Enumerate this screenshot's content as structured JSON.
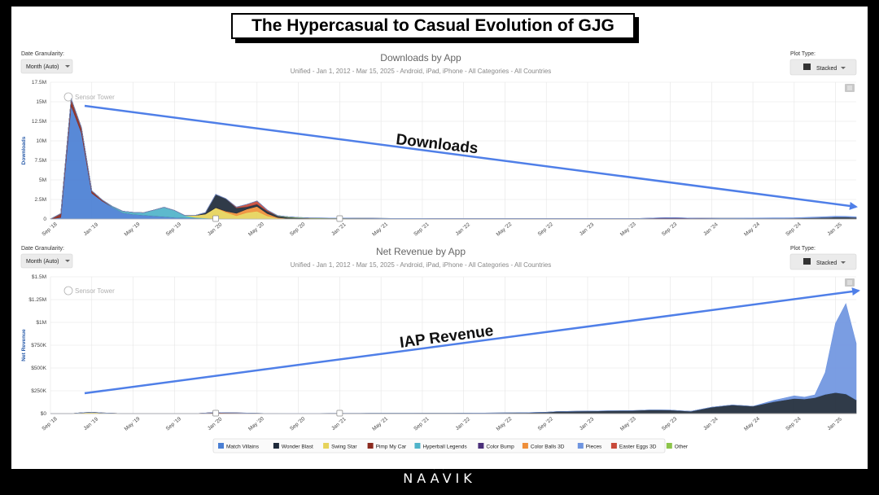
{
  "slide_title": "The Hypercasual to Casual Evolution of GJG",
  "footer_brand": "NAAVIK",
  "watermark": "Sensor Tower",
  "controls": {
    "granularity_label": "Date Granularity:",
    "granularity_value": "Month (Auto)",
    "plot_type_label": "Plot Type:",
    "plot_type_value": "Stacked"
  },
  "x_tick_labels": [
    "Sep '18",
    "Jan '19",
    "May '19",
    "Sep '19",
    "Jan '20",
    "May '20",
    "Sep '20",
    "Jan '21",
    "May '21",
    "Sep '21",
    "Jan '22",
    "May '22",
    "Sep '22",
    "Jan '23",
    "May '23",
    "Sep '23",
    "Jan '24",
    "May '24",
    "Sep '24",
    "Jan '25"
  ],
  "colors": {
    "Match Villains": "#4a7fd4",
    "Wonder Blast": "#1e2a3a",
    "Swing Star": "#e6d35a",
    "Pimp My Car": "#8b2a1e",
    "Hyperball Legends": "#4fb3c9",
    "Color Bump": "#4a2f7a",
    "Color Balls 3D": "#ef8f3a",
    "Pieces": "#6f95e0",
    "Easter Eggs 3D": "#c94a3a",
    "Other": "#8cc44a",
    "arrow": "#4f7fe8"
  },
  "legend": [
    "Match Villains",
    "Wonder Blast",
    "Swing Star",
    "Pimp My Car",
    "Hyperball Legends",
    "Color Bump",
    "Color Balls 3D",
    "Pieces",
    "Easter Eggs 3D",
    "Other"
  ],
  "chart_data": [
    {
      "type": "area",
      "title": "Downloads by App",
      "subtitle": "Unified - Jan 1, 2012 - Mar 15, 2025 - Android, iPad, iPhone - All Categories - All Countries",
      "ylabel": "Downloads",
      "y_ticks": [
        "0",
        "2.5M",
        "5M",
        "7.5M",
        "10M",
        "12.5M",
        "15M",
        "17.5M"
      ],
      "ylim": [
        0,
        17500000
      ],
      "annotation": "Downloads",
      "months_start": "2018-09",
      "months_end": "2025-03",
      "series": [
        {
          "name": "Match Villains",
          "points": [
            [
              "2018-09",
              0
            ],
            [
              "2018-10",
              200000
            ],
            [
              "2018-11",
              14500000
            ],
            [
              "2018-12",
              11000000
            ],
            [
              "2019-01",
              3300000
            ],
            [
              "2019-02",
              2300000
            ],
            [
              "2019-03",
              1500000
            ],
            [
              "2019-04",
              800000
            ],
            [
              "2019-05",
              600000
            ],
            [
              "2019-06",
              500000
            ],
            [
              "2019-07",
              400000
            ],
            [
              "2019-08",
              300000
            ],
            [
              "2019-09",
              200000
            ],
            [
              "2019-10",
              150000
            ],
            [
              "2019-11",
              100000
            ],
            [
              "2020-01",
              50000
            ],
            [
              "2020-06",
              0
            ]
          ]
        },
        {
          "name": "Pimp My Car",
          "points": [
            [
              "2018-09",
              0
            ],
            [
              "2018-10",
              500000
            ],
            [
              "2018-11",
              900000
            ],
            [
              "2018-12",
              700000
            ],
            [
              "2019-01",
              300000
            ],
            [
              "2019-03",
              0
            ]
          ]
        },
        {
          "name": "Hyperball Legends",
          "points": [
            [
              "2019-02",
              0
            ],
            [
              "2019-04",
              200000
            ],
            [
              "2019-06",
              300000
            ],
            [
              "2019-08",
              1200000
            ],
            [
              "2019-09",
              900000
            ],
            [
              "2019-10",
              300000
            ],
            [
              "2019-11",
              100000
            ],
            [
              "2020-01",
              0
            ]
          ]
        },
        {
          "name": "Swing Star",
          "points": [
            [
              "2019-10",
              0
            ],
            [
              "2019-12",
              500000
            ],
            [
              "2020-01",
              1400000
            ],
            [
              "2020-02",
              800000
            ],
            [
              "2020-03",
              400000
            ],
            [
              "2020-04",
              800000
            ],
            [
              "2020-05",
              1000000
            ],
            [
              "2020-06",
              400000
            ],
            [
              "2020-07",
              100000
            ],
            [
              "2020-09",
              0
            ]
          ]
        },
        {
          "name": "Color Balls 3D",
          "points": [
            [
              "2020-01",
              0
            ],
            [
              "2020-03",
              300000
            ],
            [
              "2020-05",
              600000
            ],
            [
              "2020-06",
              300000
            ],
            [
              "2020-07",
              100000
            ],
            [
              "2020-08",
              0
            ]
          ]
        },
        {
          "name": "Wonder Blast",
          "points": [
            [
              "2019-11",
              0
            ],
            [
              "2019-12",
              200000
            ],
            [
              "2020-01",
              1700000
            ],
            [
              "2020-02",
              1600000
            ],
            [
              "2020-03",
              700000
            ],
            [
              "2020-04",
              300000
            ],
            [
              "2020-05",
              300000
            ],
            [
              "2020-06",
              300000
            ],
            [
              "2020-07",
              200000
            ],
            [
              "2020-10",
              100000
            ],
            [
              "2021-04",
              80000
            ],
            [
              "2022-01",
              60000
            ],
            [
              "2023-01",
              60000
            ],
            [
              "2024-01",
              80000
            ],
            [
              "2024-09",
              100000
            ],
            [
              "2024-12",
              200000
            ],
            [
              "2025-01",
              250000
            ],
            [
              "2025-02",
              250000
            ],
            [
              "2025-03",
              200000
            ]
          ]
        },
        {
          "name": "Easter Eggs 3D",
          "points": [
            [
              "2020-02",
              0
            ],
            [
              "2020-03",
              100000
            ],
            [
              "2020-04",
              300000
            ],
            [
              "2020-05",
              400000
            ],
            [
              "2020-06",
              150000
            ],
            [
              "2020-07",
              0
            ]
          ]
        },
        {
          "name": "Other",
          "points": [
            [
              "2020-06",
              0
            ],
            [
              "2020-08",
              80000
            ],
            [
              "2020-10",
              50000
            ],
            [
              "2021-01",
              30000
            ],
            [
              "2021-06",
              0
            ]
          ]
        },
        {
          "name": "Color Bump",
          "points": [
            [
              "2023-06",
              0
            ],
            [
              "2023-07",
              40000
            ],
            [
              "2023-09",
              100000
            ],
            [
              "2023-11",
              40000
            ],
            [
              "2024-02",
              0
            ]
          ]
        },
        {
          "name": "Pieces",
          "points": [
            [
              "2024-01",
              0
            ],
            [
              "2024-06",
              40000
            ],
            [
              "2024-10",
              80000
            ],
            [
              "2025-01",
              100000
            ],
            [
              "2025-03",
              80000
            ]
          ]
        }
      ]
    },
    {
      "type": "area",
      "title": "Net Revenue by App",
      "subtitle": "Unified - Jan 1, 2012 - Mar 15, 2025 - Android, iPad, iPhone - All Categories - All Countries",
      "ylabel": "Net Revenue",
      "y_ticks": [
        "$0",
        "$250K",
        "$500K",
        "$750K",
        "$1M",
        "$1.25M",
        "$1.5M"
      ],
      "ylim": [
        0,
        1500000
      ],
      "annotation": "IAP Revenue",
      "months_start": "2018-09",
      "months_end": "2025-03",
      "series": [
        {
          "name": "Swing Star",
          "points": [
            [
              "2018-11",
              0
            ],
            [
              "2018-12",
              10000
            ],
            [
              "2019-01",
              15000
            ],
            [
              "2019-02",
              8000
            ],
            [
              "2019-04",
              0
            ]
          ]
        },
        {
          "name": "Pimp My Car",
          "points": [
            [
              "2019-11",
              0
            ],
            [
              "2020-01",
              12000
            ],
            [
              "2020-03",
              8000
            ],
            [
              "2020-06",
              0
            ]
          ]
        },
        {
          "name": "Wonder Blast",
          "points": [
            [
              "2020-01",
              0
            ],
            [
              "2021-03",
              3000
            ],
            [
              "2022-01",
              5000
            ],
            [
              "2022-07",
              10000
            ],
            [
              "2022-09",
              15000
            ],
            [
              "2022-10",
              22000
            ],
            [
              "2023-01",
              28000
            ],
            [
              "2023-05",
              32000
            ],
            [
              "2023-07",
              40000
            ],
            [
              "2023-09",
              38000
            ],
            [
              "2023-11",
              25000
            ],
            [
              "2024-01",
              70000
            ],
            [
              "2024-03",
              95000
            ],
            [
              "2024-05",
              80000
            ],
            [
              "2024-07",
              130000
            ],
            [
              "2024-09",
              165000
            ],
            [
              "2024-10",
              160000
            ],
            [
              "2024-11",
              175000
            ],
            [
              "2024-12",
              210000
            ],
            [
              "2025-01",
              230000
            ],
            [
              "2025-02",
              215000
            ],
            [
              "2025-03",
              150000
            ]
          ]
        },
        {
          "name": "Pieces",
          "points": [
            [
              "2024-05",
              0
            ],
            [
              "2024-07",
              15000
            ],
            [
              "2024-09",
              30000
            ],
            [
              "2024-10",
              20000
            ],
            [
              "2024-11",
              30000
            ],
            [
              "2024-12",
              240000
            ],
            [
              "2025-01",
              760000
            ],
            [
              "2025-02",
              990000
            ],
            [
              "2025-03",
              620000
            ]
          ]
        }
      ]
    }
  ]
}
